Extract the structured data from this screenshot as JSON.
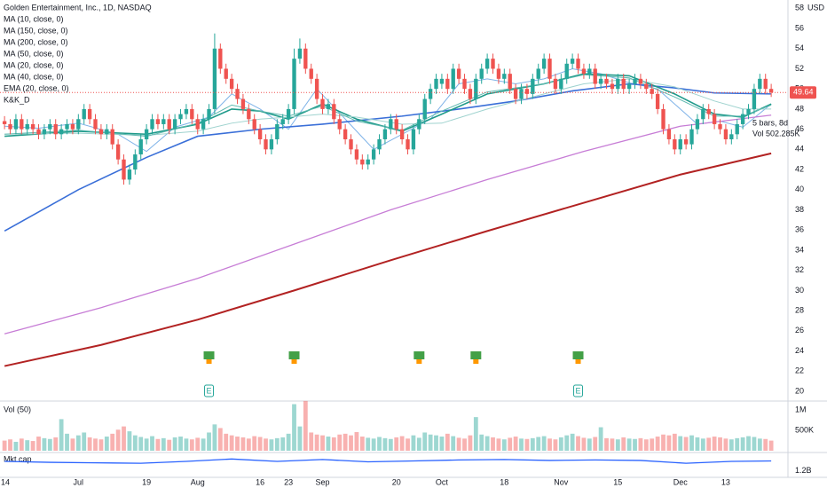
{
  "chart_data": [
    {
      "type": "candlestick",
      "title": "Golden Entertainment, Inc., 1D, NASDAQ",
      "up_color": "#26a69a",
      "down_color": "#ef5350",
      "xlim": [
        -0.8,
        137.95
      ],
      "ylim": [
        19.03,
        58.82
      ],
      "yticks": [
        20,
        22,
        24,
        26,
        28,
        30,
        32,
        34,
        36,
        38,
        40,
        42,
        44,
        46,
        48,
        50,
        52,
        54,
        56,
        58
      ],
      "y_unit": "USD",
      "open": [
        46.8,
        46.5,
        46,
        47,
        46,
        46.5,
        46,
        45.5,
        46,
        46.5,
        45.5,
        46,
        46.5,
        46,
        47,
        48,
        47,
        46,
        45.5,
        46,
        44.5,
        43,
        41,
        42,
        43.5,
        45,
        46,
        47,
        46.5,
        47,
        46,
        47,
        47.5,
        48,
        47,
        46,
        47,
        48,
        54,
        52,
        51,
        50,
        49,
        48,
        47,
        46,
        45,
        44,
        45,
        46.5,
        47,
        48,
        53,
        54,
        52,
        51,
        49,
        48,
        48.5,
        47,
        46,
        45,
        44,
        43,
        42.5,
        43,
        44,
        45,
        46,
        47,
        46,
        45,
        44,
        46,
        47,
        49,
        50,
        50.5,
        51,
        50,
        52,
        51,
        50,
        49,
        51,
        52,
        53,
        52,
        51,
        51.5,
        50,
        49,
        50,
        49.5,
        51,
        52,
        53,
        51,
        50,
        51,
        52.5,
        53,
        52,
        51.5,
        52,
        50.5,
        51,
        50.5,
        50,
        51,
        50,
        50.5,
        51,
        50.5,
        50,
        49.5,
        48,
        46,
        45,
        44,
        45,
        44.5,
        46,
        47,
        48,
        47.5,
        46.5,
        46,
        45,
        45.5,
        46.5,
        47.5,
        48,
        50,
        51,
        50
      ],
      "high": [
        47.3,
        47,
        47.5,
        47.5,
        47,
        47,
        46.5,
        46.5,
        47,
        47,
        46.5,
        47,
        47,
        47.5,
        48.5,
        48.5,
        47.5,
        46.5,
        46.5,
        46.5,
        45,
        43.5,
        42.5,
        44,
        45.5,
        46.5,
        47.5,
        47.5,
        47.5,
        47.5,
        47.5,
        48,
        48.5,
        48.5,
        47.5,
        47.5,
        48.5,
        55.5,
        54.5,
        52.5,
        51.5,
        50.5,
        49.5,
        48.5,
        47.5,
        46.5,
        45.5,
        45.5,
        47,
        47.5,
        48.5,
        54,
        55,
        54.5,
        52.5,
        51.5,
        49.5,
        49,
        49,
        47.5,
        46.5,
        45.5,
        44.5,
        43.5,
        43.5,
        44.5,
        45.5,
        46.5,
        47.5,
        47.5,
        46.5,
        45.5,
        46.5,
        47.5,
        49.5,
        50.5,
        51.5,
        51.5,
        51.5,
        52.5,
        52.5,
        51.5,
        50.5,
        51.5,
        52.5,
        53.5,
        53.5,
        52.5,
        52,
        52,
        50.5,
        50.5,
        50.5,
        51.5,
        52.5,
        53.5,
        53.5,
        51.5,
        51.5,
        53,
        53.5,
        53.5,
        52.5,
        52.5,
        52.5,
        51.5,
        51.5,
        51,
        51.5,
        51.5,
        51,
        51.5,
        51.5,
        51,
        50.5,
        50,
        48.5,
        46.5,
        45.5,
        45.5,
        45.5,
        46.5,
        47.5,
        48.5,
        48.5,
        48,
        47,
        46.5,
        46,
        47,
        48,
        48.5,
        50.5,
        51.5,
        51.5,
        50.5
      ],
      "low": [
        46,
        45.5,
        45.5,
        45.5,
        45.5,
        45.5,
        45,
        45,
        45.5,
        45,
        45,
        45.5,
        45.5,
        45.5,
        46.5,
        46.5,
        45.5,
        45,
        45,
        44,
        42.5,
        40.5,
        40.5,
        41.5,
        43,
        44.5,
        45.5,
        46,
        46,
        45.5,
        45.5,
        46.5,
        47,
        46.5,
        45.5,
        45.5,
        46.5,
        47.5,
        51.5,
        50.5,
        49.5,
        48.5,
        47.5,
        46.5,
        45.5,
        44.5,
        43.5,
        43.5,
        44.5,
        46,
        46.5,
        47.5,
        52.5,
        51.5,
        50.5,
        48.5,
        47.5,
        47.5,
        46.5,
        45.5,
        44.5,
        43.5,
        42.5,
        42,
        42,
        42.5,
        43.5,
        44.5,
        45.5,
        45.5,
        44.5,
        43.5,
        43.5,
        45.5,
        46.5,
        48.5,
        49.5,
        50,
        49.5,
        49.5,
        50.5,
        49.5,
        48.5,
        48.5,
        50.5,
        51.5,
        51.5,
        50.5,
        50.5,
        49.5,
        48.5,
        48.5,
        49,
        49,
        50.5,
        51.5,
        50.5,
        49.5,
        49.5,
        50.5,
        52,
        51.5,
        51,
        51,
        50,
        50,
        50,
        49.5,
        49.5,
        49.5,
        49.5,
        50,
        50,
        49.5,
        49,
        47.5,
        45.5,
        44.5,
        43.5,
        43.5,
        44,
        44,
        45.5,
        46.5,
        47,
        46,
        45.5,
        44.5,
        44.5,
        45,
        46,
        47,
        47.5,
        49.5,
        49.5,
        49.2
      ],
      "close": [
        46.5,
        46,
        47,
        46,
        46.5,
        46,
        45.5,
        46,
        46.5,
        45.5,
        46,
        46.5,
        46,
        47,
        48,
        47,
        46,
        45.5,
        46,
        44.5,
        43,
        41,
        42,
        43.5,
        45,
        46,
        47,
        46.5,
        47,
        46,
        47,
        47.5,
        48,
        47,
        46,
        47,
        48,
        54,
        52,
        51,
        50,
        49,
        48,
        47,
        46,
        45,
        44,
        45,
        46.5,
        47,
        48,
        53,
        54,
        52,
        51,
        49,
        48,
        48.5,
        47,
        46,
        45,
        44,
        43,
        42.5,
        43,
        44,
        45,
        46,
        47,
        46,
        45,
        44,
        46,
        47,
        49,
        50,
        51,
        51,
        50,
        52,
        51,
        50,
        49,
        51,
        52,
        53,
        52,
        51,
        51.5,
        50,
        49,
        50,
        49.5,
        51,
        52,
        53,
        51,
        50,
        51,
        52.5,
        53,
        52,
        51.5,
        52,
        50.5,
        51,
        50.5,
        50,
        51,
        50,
        50.5,
        51,
        50.5,
        50,
        49.5,
        48,
        46,
        45,
        44,
        45,
        44.5,
        46,
        47,
        48,
        47.5,
        46.5,
        46,
        45,
        45.5,
        46.5,
        47.5,
        48,
        50,
        51,
        50,
        49.64
      ],
      "series": [
        {
          "name": "MA (10, close, 0)",
          "color": "#7fb3e8",
          "width": 1,
          "x": [
            0,
            6,
            13,
            20,
            25,
            30,
            36,
            40,
            45,
            50,
            55,
            60,
            65,
            70,
            75,
            80,
            85,
            90,
            95,
            100,
            105,
            110,
            115,
            118,
            122,
            126,
            130,
            135
          ],
          "values": [
            46.3,
            46.1,
            46.6,
            45.5,
            43.8,
            46.2,
            47.2,
            49.5,
            48,
            46,
            50,
            47,
            44,
            45.5,
            47,
            50.5,
            51,
            50.5,
            51,
            52,
            51.5,
            50.6,
            50,
            48.5,
            46.5,
            46.8,
            46.2,
            48.5
          ]
        },
        {
          "name": "MA (150, close, 0)",
          "color": "#c77dd6",
          "width": 1.3,
          "x": [
            0,
            17,
            34,
            51,
            68,
            85,
            102,
            119,
            135
          ],
          "values": [
            25.7,
            28.3,
            31.2,
            34.6,
            38,
            41,
            43.8,
            46.3,
            47.4
          ]
        },
        {
          "name": "MA (200, close, 0)",
          "color": "#b22222",
          "width": 2,
          "x": [
            0,
            17,
            34,
            51,
            68,
            85,
            102,
            119,
            135
          ],
          "values": [
            22.5,
            24.6,
            27.1,
            30,
            33,
            35.9,
            38.7,
            41.5,
            43.6
          ]
        },
        {
          "name": "MA (50, close, 0)",
          "color": "#3a6fd8",
          "width": 1.6,
          "x": [
            0,
            13,
            25,
            34,
            45,
            56,
            70,
            80,
            90,
            100,
            110,
            118,
            125,
            135
          ],
          "values": [
            35.9,
            40,
            43.2,
            45.3,
            46,
            46.5,
            47.3,
            48,
            48.8,
            49.8,
            50.5,
            50.1,
            49.6,
            49.5
          ]
        },
        {
          "name": "MA (20, close, 0)",
          "color": "#1f9a8a",
          "width": 1.6,
          "x": [
            0,
            13,
            25,
            34,
            40,
            45,
            50,
            56,
            62,
            70,
            77,
            85,
            95,
            102,
            110,
            118,
            125,
            130,
            135
          ],
          "values": [
            45.3,
            45.8,
            45.5,
            46.5,
            48,
            47.8,
            47,
            48.5,
            47,
            45.8,
            47.5,
            49.5,
            50.5,
            51.5,
            51.3,
            49.5,
            47.5,
            47.2,
            48.5
          ]
        },
        {
          "name": "MA (40, close, 0)",
          "color": "#9fd3cf",
          "width": 1,
          "x": [
            0,
            13,
            25,
            34,
            40,
            45,
            50,
            56,
            62,
            70,
            77,
            85,
            95,
            102,
            110,
            118,
            125,
            130,
            135
          ],
          "values": [
            45.5,
            45.6,
            45.4,
            45.8,
            46.6,
            47,
            47.2,
            47.5,
            47.2,
            46.5,
            46.6,
            48,
            49.5,
            50.5,
            51,
            50.2,
            48.8,
            48,
            48
          ]
        },
        {
          "name": "EMA (20, close, 0)",
          "color": "#5fb9b0",
          "width": 1,
          "x": [
            0,
            13,
            25,
            34,
            40,
            45,
            50,
            56,
            62,
            70,
            77,
            85,
            95,
            102,
            110,
            118,
            125,
            130,
            135
          ],
          "values": [
            45.5,
            45.9,
            45.3,
            46.6,
            48.4,
            47.8,
            47.3,
            48.3,
            46.8,
            45.9,
            47.8,
            49.7,
            50.5,
            51.4,
            51.1,
            49.2,
            47.3,
            47.3,
            48.4
          ]
        }
      ],
      "indicator_label": "K&K_D",
      "signals_x": [
        36,
        51,
        73,
        83,
        101
      ],
      "earnings": {
        "label": "E",
        "x": [
          36,
          101
        ]
      },
      "info_labels": [
        "5 bars, 8d",
        "Vol 502.285K"
      ]
    },
    {
      "type": "bar",
      "name": "Vol (50)",
      "xlim": [
        -0.8,
        137.95
      ],
      "ylim": [
        0,
        1227000
      ],
      "yticks": [
        {
          "value": 500000,
          "label": "500K"
        },
        {
          "value": 1000000,
          "label": "1M"
        }
      ],
      "values": [
        250000,
        280000,
        220000,
        300000,
        260000,
        240000,
        350000,
        310000,
        290000,
        330000,
        780000,
        420000,
        300000,
        380000,
        450000,
        330000,
        300000,
        280000,
        350000,
        420000,
        520000,
        600000,
        480000,
        380000,
        340000,
        300000,
        360000,
        290000,
        310000,
        270000,
        330000,
        350000,
        300000,
        280000,
        320000,
        300000,
        450000,
        650000,
        560000,
        420000,
        380000,
        350000,
        330000,
        300000,
        360000,
        340000,
        300000,
        280000,
        310000,
        330000,
        420000,
        1150000,
        600000,
        1230000,
        450000,
        400000,
        380000,
        350000,
        330000,
        400000,
        420000,
        380000,
        460000,
        350000,
        320000,
        300000,
        340000,
        310000,
        290000,
        330000,
        360000,
        300000,
        380000,
        320000,
        450000,
        400000,
        380000,
        350000,
        420000,
        360000,
        320000,
        300000,
        380000,
        830000,
        400000,
        360000,
        330000,
        300000,
        280000,
        320000,
        350000,
        300000,
        290000,
        310000,
        340000,
        360000,
        300000,
        280000,
        330000,
        380000,
        420000,
        360000,
        320000,
        300000,
        340000,
        580000,
        310000,
        300000,
        280000,
        330000,
        300000,
        290000,
        310000,
        280000,
        300000,
        350000,
        400000,
        380000,
        420000,
        360000,
        340000,
        380000,
        330000,
        300000,
        320000,
        350000,
        330000,
        300000,
        280000,
        310000,
        330000,
        360000,
        340000,
        300000,
        290000,
        250000
      ]
    },
    {
      "type": "line",
      "name": "Mkt cap",
      "color": "#2962ff",
      "xlim": [
        -0.8,
        137.95
      ],
      "ylim": [
        1.1,
        1.55
      ],
      "yticks": [
        {
          "value": 1.2,
          "label": "1.2B"
        }
      ],
      "x": [
        0,
        8,
        16,
        24,
        32,
        40,
        48,
        56,
        64,
        72,
        80,
        88,
        96,
        104,
        112,
        120,
        128,
        135
      ],
      "values": [
        1.4,
        1.38,
        1.37,
        1.36,
        1.4,
        1.45,
        1.4,
        1.44,
        1.39,
        1.41,
        1.43,
        1.44,
        1.42,
        1.43,
        1.42,
        1.36,
        1.4,
        1.41
      ],
      "xticks": [
        {
          "value": 0,
          "label": "14"
        },
        {
          "value": 13,
          "label": "Jul"
        },
        {
          "value": 25,
          "label": "19"
        },
        {
          "value": 34,
          "label": "Aug"
        },
        {
          "value": 45,
          "label": "16"
        },
        {
          "value": 50,
          "label": "23"
        },
        {
          "value": 56,
          "label": "Sep"
        },
        {
          "value": 69,
          "label": "20"
        },
        {
          "value": 77,
          "label": "Oct"
        },
        {
          "value": 88,
          "label": "18"
        },
        {
          "value": 98,
          "label": "Nov"
        },
        {
          "value": 108,
          "label": "15"
        },
        {
          "value": 119,
          "label": "Dec"
        },
        {
          "value": 127,
          "label": "13"
        }
      ]
    }
  ]
}
